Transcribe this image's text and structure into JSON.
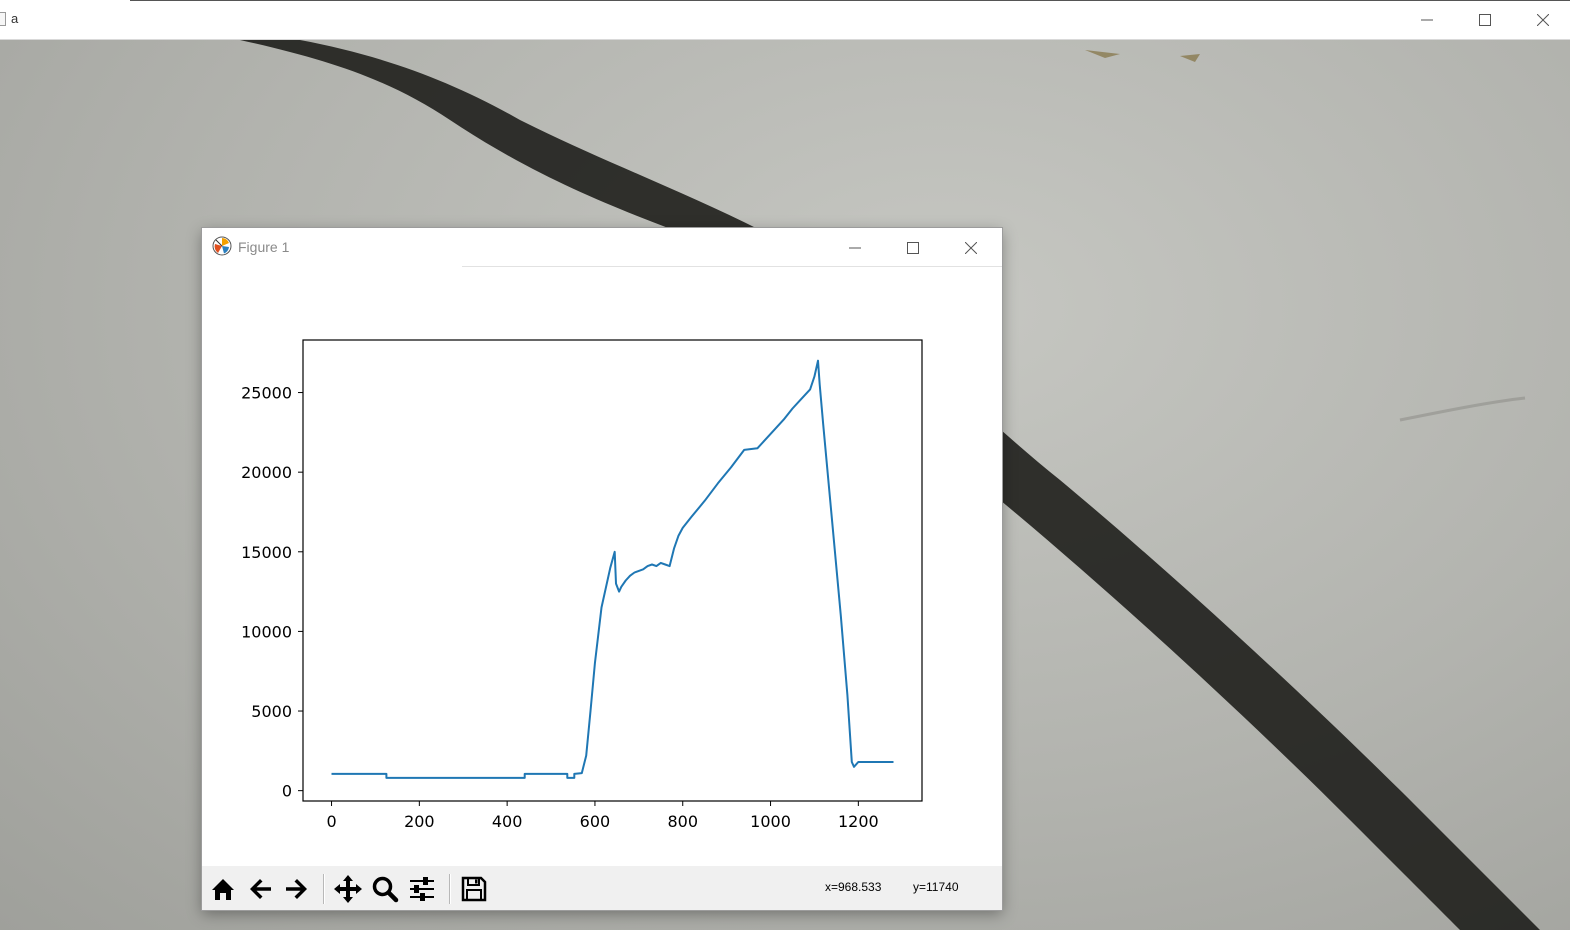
{
  "outer_window": {
    "title": "a"
  },
  "figure_window": {
    "title": "Figure 1"
  },
  "chart_data": {
    "type": "line",
    "title": "",
    "xlabel": "",
    "ylabel": "",
    "xlim": [
      -65,
      1345
    ],
    "ylim": [
      -650,
      28300
    ],
    "xticks": [
      0,
      200,
      400,
      600,
      800,
      1000,
      1200
    ],
    "yticks": [
      0,
      5000,
      10000,
      15000,
      20000,
      25000
    ],
    "xtick_labels": [
      "0",
      "200",
      "400",
      "600",
      "800",
      "1000",
      "1200"
    ],
    "ytick_labels": [
      "0",
      "5000",
      "10000",
      "15000",
      "20000",
      "25000"
    ],
    "grid": false,
    "series": [
      {
        "color": "#1f77b4",
        "x": [
          0,
          125,
          125,
          440,
          440,
          537,
          537,
          553,
          553,
          570,
          580,
          590,
          600,
          615,
          635,
          645,
          648,
          655,
          660,
          670,
          680,
          690,
          700,
          710,
          720,
          730,
          740,
          750,
          760,
          770,
          780,
          790,
          800,
          820,
          850,
          880,
          910,
          940,
          970,
          990,
          1010,
          1030,
          1050,
          1070,
          1090,
          1100,
          1108,
          1112,
          1120,
          1140,
          1160,
          1175,
          1185,
          1190,
          1200,
          1280
        ],
        "y": [
          1050,
          1050,
          800,
          800,
          1050,
          1050,
          800,
          800,
          1050,
          1100,
          2200,
          5000,
          8000,
          11500,
          14000,
          15000,
          13000,
          12500,
          12800,
          13200,
          13500,
          13700,
          13800,
          13900,
          14100,
          14200,
          14100,
          14300,
          14200,
          14100,
          15200,
          16000,
          16500,
          17200,
          18200,
          19300,
          20300,
          21400,
          21500,
          22100,
          22700,
          23300,
          24000,
          24600,
          25200,
          26000,
          27000,
          25500,
          23000,
          17000,
          11000,
          6000,
          1800,
          1500,
          1800,
          1800
        ]
      }
    ]
  },
  "toolbar": {
    "buttons": [
      {
        "name": "home-button",
        "icon": "home-icon"
      },
      {
        "name": "back-button",
        "icon": "arrow-left-icon"
      },
      {
        "name": "forward-button",
        "icon": "arrow-right-icon"
      },
      {
        "name": "pan-button",
        "icon": "move-icon"
      },
      {
        "name": "zoom-button",
        "icon": "magnifier-icon"
      },
      {
        "name": "configure-subplots-button",
        "icon": "sliders-icon"
      },
      {
        "name": "save-button",
        "icon": "floppy-disk-icon"
      }
    ],
    "x_readout": "x=968.533",
    "y_readout": "y=11740"
  }
}
